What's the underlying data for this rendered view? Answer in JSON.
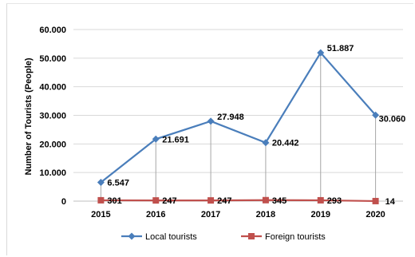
{
  "chart_data": {
    "type": "line",
    "title": "",
    "xlabel": "",
    "ylabel": "Number of Tourists (People)",
    "categories": [
      "2015",
      "2016",
      "2017",
      "2018",
      "2019",
      "2020"
    ],
    "ylim": [
      0,
      60000
    ],
    "yticks": [
      "0",
      "10.000",
      "20.000",
      "30.000",
      "40.000",
      "50.000",
      "60.000"
    ],
    "grid": true,
    "legend_position": "bottom",
    "series": [
      {
        "name": "Local tourists",
        "values": [
          6547,
          21691,
          27948,
          20442,
          51887,
          30060
        ],
        "labels": [
          "6.547",
          "21.691",
          "27.948",
          "20.442",
          "51.887",
          "30.060"
        ],
        "color": "#4a7ebb",
        "marker": "diamond"
      },
      {
        "name": "Foreign tourists",
        "values": [
          301,
          247,
          247,
          345,
          293,
          14
        ],
        "labels": [
          "301",
          "247",
          "247",
          "345",
          "293",
          "14"
        ],
        "color": "#c0504d",
        "marker": "square"
      }
    ]
  }
}
